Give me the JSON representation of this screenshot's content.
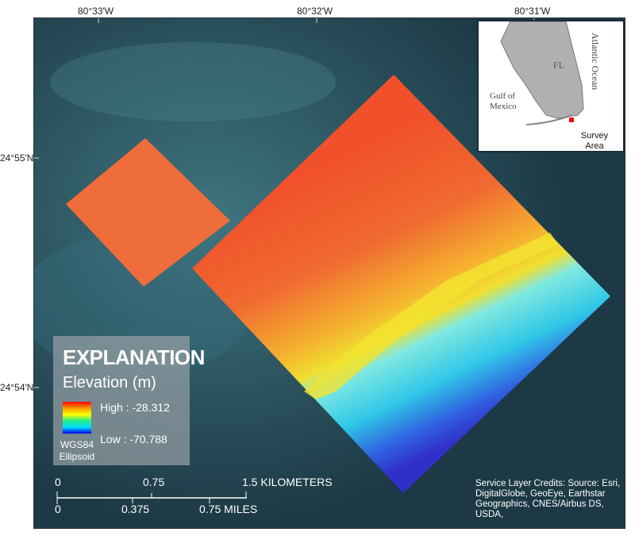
{
  "graticule": {
    "longitudes": [
      "80°33'W",
      "80°32'W",
      "80°31'W"
    ],
    "latitudes": [
      "24°55'N",
      "24°54'N"
    ]
  },
  "inset": {
    "state_label": "FL",
    "ocean_east": "Atlantic Ocean",
    "gulf": "Gulf of Mexico",
    "survey_label": "Survey Area",
    "marker_color": "#ff0000"
  },
  "legend": {
    "title": "EXPLANATION",
    "subtitle": "Elevation (m)",
    "high": "High : -28.312",
    "low": "Low : -70.788",
    "datum": "WGS84 Ellipsoid",
    "ramp_colors": [
      "#ff0000",
      "#ff9900",
      "#ffff00",
      "#22ee88",
      "#00ddff",
      "#0000ee"
    ]
  },
  "scalebar": {
    "km_labels": [
      "0",
      "0.75",
      "1.5 KILOMETERS"
    ],
    "mi_labels": [
      "0",
      "0.375",
      "0.75 MILES"
    ]
  },
  "credits": "Service Layer Credits:  Source: Esri, DigitalGlobe, GeoEye, Earthstar Geographics, CNES/Airbus DS, USDA,"
}
